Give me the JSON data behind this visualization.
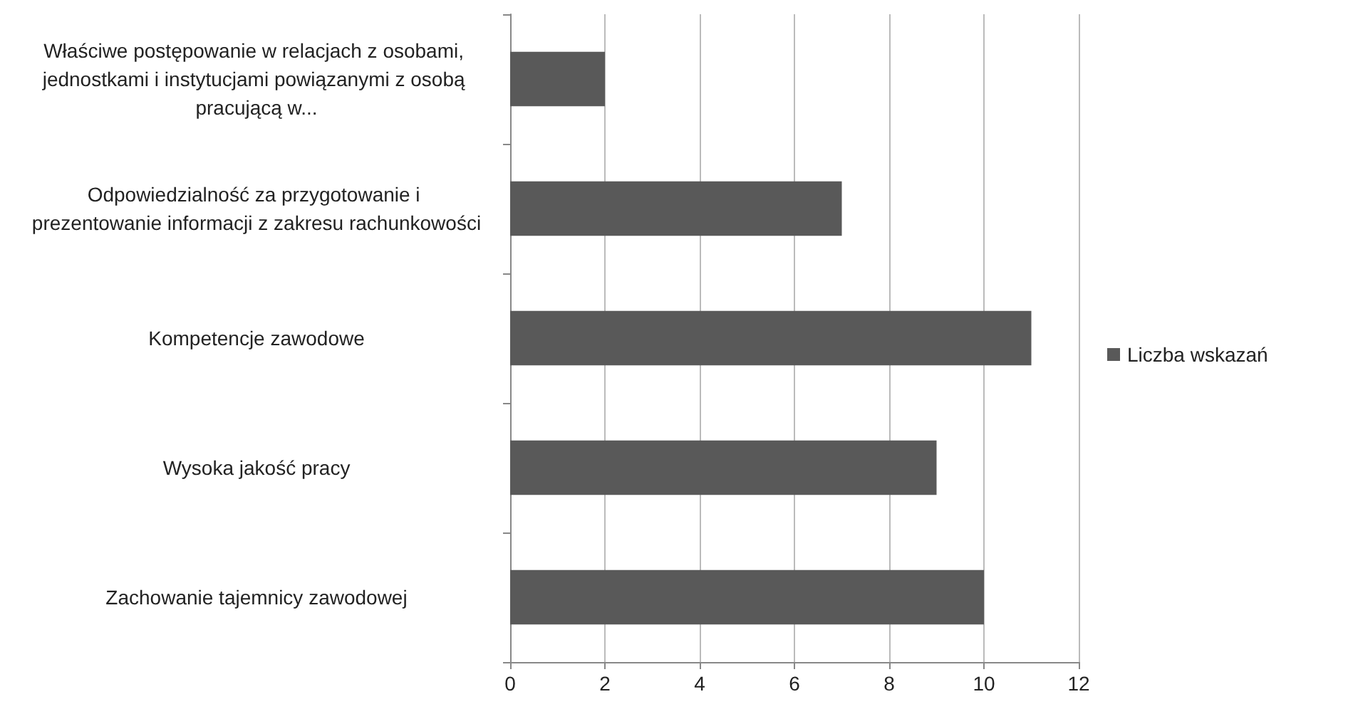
{
  "chart_data": {
    "type": "bar",
    "orientation": "horizontal",
    "categories": [
      "Właściwe postępowanie w relacjach z osobami, jednostkami i instytucjami powiązanymi z osobą pracującą w...",
      "Odpowiedzialność za przygotowanie i prezentowanie informacji z zakresu rachunkowości",
      "Kompetencje zawodowe",
      "Wysoka jakość pracy",
      "Zachowanie tajemnicy zawodowej"
    ],
    "series": [
      {
        "name": "Liczba wskazań",
        "color": "#595959",
        "values": [
          2,
          7,
          11,
          9,
          10
        ]
      }
    ],
    "xlim": [
      0,
      12
    ],
    "xticks": [
      0,
      2,
      4,
      6,
      8,
      10,
      12
    ],
    "grid": "x",
    "legend": "right"
  }
}
